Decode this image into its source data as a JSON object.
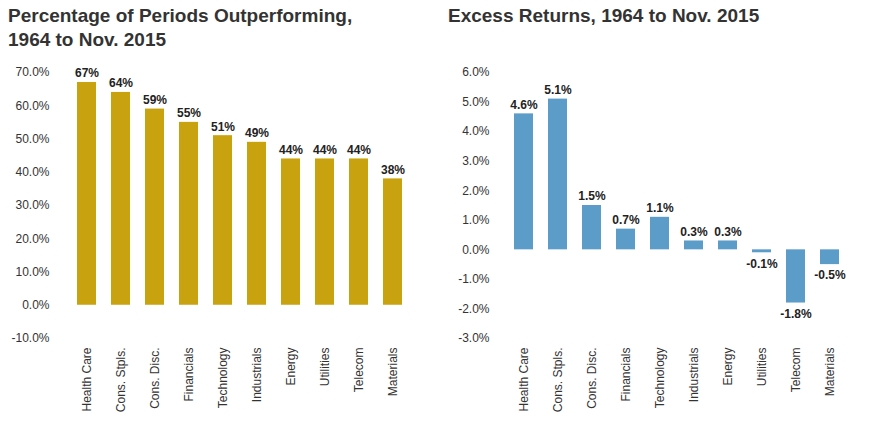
{
  "chart_data": [
    {
      "type": "bar",
      "title": "Percentage of Periods Outperforming, 1964 to Nov. 2015",
      "categories": [
        "Health Care",
        "Cons. Stpls.",
        "Cons. Disc.",
        "Financials",
        "Technology",
        "Industrials",
        "Energy",
        "Utilities",
        "Telecom",
        "Materials"
      ],
      "values": [
        67,
        64,
        59,
        55,
        51,
        49,
        44,
        44,
        44,
        38
      ],
      "value_labels": [
        "67%",
        "64%",
        "59%",
        "55%",
        "51%",
        "49%",
        "44%",
        "44%",
        "44%",
        "38%"
      ],
      "color": "#c9a30f",
      "ylim": [
        -10,
        70
      ],
      "yticks": [
        {
          "value": -10,
          "label": "-10.0%"
        },
        {
          "value": 0,
          "label": "0.0%"
        },
        {
          "value": 10,
          "label": "10.0%"
        },
        {
          "value": 20,
          "label": "20.0%"
        },
        {
          "value": 30,
          "label": "30.0%"
        },
        {
          "value": 40,
          "label": "40.0%"
        },
        {
          "value": 50,
          "label": "50.0%"
        },
        {
          "value": 60,
          "label": "60.0%"
        },
        {
          "value": 70,
          "label": "70.0%"
        }
      ],
      "data_labels": true
    },
    {
      "type": "bar",
      "title": "Excess Returns, 1964 to Nov. 2015",
      "categories": [
        "Health Care",
        "Cons. Stpls.",
        "Cons. Disc.",
        "Financials",
        "Technology",
        "Industrials",
        "Energy",
        "Utilities",
        "Telecom",
        "Materials"
      ],
      "values": [
        4.6,
        5.1,
        1.5,
        0.7,
        1.1,
        0.3,
        0.3,
        -0.1,
        -1.8,
        -0.5
      ],
      "value_labels": [
        "4.6%",
        "5.1%",
        "1.5%",
        "0.7%",
        "1.1%",
        "0.3%",
        "0.3%",
        "-0.1%",
        "-1.8%",
        "-0.5%"
      ],
      "color": "#5b9cc8",
      "ylim": [
        -3,
        6
      ],
      "yticks": [
        {
          "value": -3,
          "label": "-3.0%"
        },
        {
          "value": -2,
          "label": "-2.0%"
        },
        {
          "value": -1,
          "label": "-1.0%"
        },
        {
          "value": 0,
          "label": "0.0%"
        },
        {
          "value": 1,
          "label": "1.0%"
        },
        {
          "value": 2,
          "label": "2.0%"
        },
        {
          "value": 3,
          "label": "3.0%"
        },
        {
          "value": 4,
          "label": "4.0%"
        },
        {
          "value": 5,
          "label": "5.0%"
        },
        {
          "value": 6,
          "label": "6.0%"
        }
      ],
      "data_labels": true
    }
  ]
}
